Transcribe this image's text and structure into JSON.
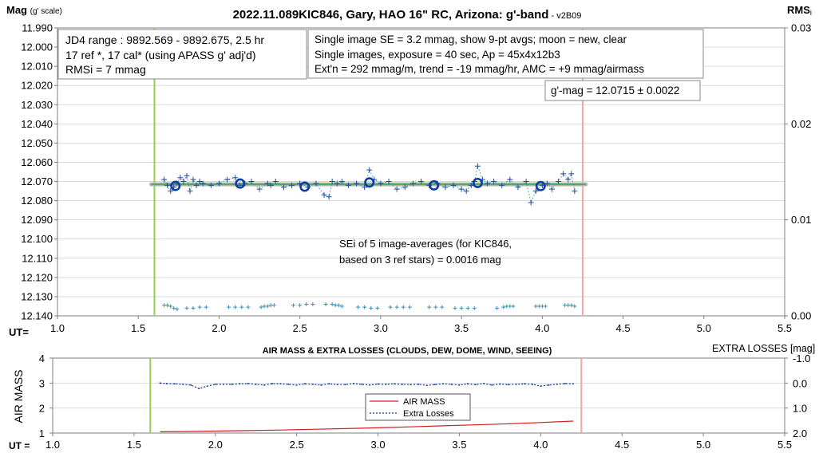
{
  "colors": {
    "start_line": "#92d050",
    "end_line": "#f4a6a6",
    "points": "#1f4e9a",
    "avg_ring": "#0b3ea8",
    "sigma": "#3a8fb0",
    "fit_line": "#4caf50",
    "airmass": "#d02020",
    "extra": "#1030a0",
    "grid": "#d9d9d9"
  },
  "chart_data": [
    {
      "type": "scatter",
      "title": "2022.11.089KIC846, Gary, HAO 16\" RC, Arizona: g'-band",
      "title_suffix": " - v2B09",
      "ylabel": "Mag",
      "ylabel_suffix": "(g' scale)",
      "y2label": "RMS",
      "y2label_suffix": "i",
      "xlabel": "UT=",
      "xlim": [
        1.0,
        5.5
      ],
      "ylim": [
        11.99,
        12.14
      ],
      "y_inverted": true,
      "y2lim": [
        0.0,
        0.03
      ],
      "x_ticks": [
        "1.0",
        "1.5",
        "2.0",
        "2.5",
        "3.0",
        "3.5",
        "4.0",
        "4.5",
        "5.0",
        "5.5"
      ],
      "y_ticks": [
        "11.990",
        "12.000",
        "12.010",
        "12.020",
        "12.030",
        "12.040",
        "12.050",
        "12.060",
        "12.070",
        "12.080",
        "12.090",
        "12.100",
        "12.110",
        "12.120",
        "12.130",
        "12.140"
      ],
      "y2_ticks": [
        "0.00",
        "0.01",
        "0.02",
        "0.03"
      ],
      "vline_start": 1.6,
      "vline_end": 4.25,
      "fit": {
        "x": [
          1.58,
          4.27
        ],
        "y": 12.0715
      },
      "info_left": [
        "JD4 range : 9892.569 - 9892.675,  2.5 hr",
        "17 ref *, 17 cal* (using APASS g' adj'd)",
        "RMSi = 7 mmag"
      ],
      "info_right": [
        "Single image SE = 3.2 mmag, show  9-pt avgs; moon = new, clear",
        "Single images, exposure = 40 sec, Ap = 45x4x12b3",
        "Ext'n = 292 mmag/m, trend = -19 mmag/hr, AMC = +9 mmag/airmass"
      ],
      "gmag_label": "g'-mag = 12.0715 ± 0.0022",
      "sei_label": [
        "SEi of 5 image-averages (for KIC846,",
        "based on 3 ref stars) = 0.0016 mag"
      ],
      "series": [
        {
          "name": "single images",
          "x": [
            1.66,
            1.68,
            1.7,
            1.72,
            1.74,
            1.76,
            1.78,
            1.8,
            1.82,
            1.84,
            1.86,
            1.88,
            1.9,
            1.95,
            2.0,
            2.05,
            2.1,
            2.13,
            2.16,
            2.2,
            2.25,
            2.3,
            2.32,
            2.35,
            2.4,
            2.45,
            2.5,
            2.55,
            2.6,
            2.65,
            2.68,
            2.7,
            2.73,
            2.76,
            2.8,
            2.85,
            2.9,
            2.93,
            2.96,
            3.0,
            3.05,
            3.1,
            3.15,
            3.2,
            3.25,
            3.3,
            3.35,
            3.4,
            3.45,
            3.5,
            3.53,
            3.56,
            3.58,
            3.6,
            3.63,
            3.66,
            3.7,
            3.75,
            3.8,
            3.85,
            3.9,
            3.93,
            3.96,
            4.0,
            4.03,
            4.06,
            4.1,
            4.13,
            4.16,
            4.18,
            4.2
          ],
          "y": [
            12.069,
            12.072,
            12.075,
            12.073,
            12.071,
            12.068,
            12.07,
            12.067,
            12.075,
            12.069,
            12.072,
            12.07,
            12.071,
            12.072,
            12.071,
            12.069,
            12.068,
            12.072,
            12.071,
            12.07,
            12.074,
            12.071,
            12.072,
            12.07,
            12.073,
            12.072,
            12.071,
            12.073,
            12.071,
            12.077,
            12.078,
            12.07,
            12.071,
            12.07,
            12.072,
            12.071,
            12.073,
            12.064,
            12.069,
            12.071,
            12.07,
            12.074,
            12.073,
            12.071,
            12.07,
            12.072,
            12.071,
            12.073,
            12.072,
            12.074,
            12.075,
            12.072,
            12.07,
            12.062,
            12.069,
            12.071,
            12.07,
            12.072,
            12.069,
            12.073,
            12.07,
            12.081,
            12.075,
            12.072,
            12.071,
            12.074,
            12.07,
            12.066,
            12.069,
            12.066,
            12.075
          ]
        },
        {
          "name": "9-pt averages",
          "x": [
            1.73,
            2.13,
            2.53,
            2.93,
            3.33,
            3.6,
            3.99
          ],
          "y": [
            12.0723,
            12.0711,
            12.0727,
            12.0705,
            12.072,
            12.0708,
            12.0724
          ]
        },
        {
          "name": "RMSi (right axis)",
          "x": [
            1.66,
            1.68,
            1.7,
            1.72,
            1.74,
            1.8,
            1.84,
            1.88,
            1.92,
            2.06,
            2.1,
            2.14,
            2.18,
            2.26,
            2.28,
            2.3,
            2.32,
            2.34,
            2.46,
            2.5,
            2.54,
            2.58,
            2.66,
            2.7,
            2.72,
            2.74,
            2.76,
            2.86,
            2.9,
            2.94,
            2.98,
            3.06,
            3.1,
            3.14,
            3.18,
            3.3,
            3.34,
            3.38,
            3.46,
            3.5,
            3.54,
            3.58,
            3.72,
            3.76,
            3.78,
            3.8,
            3.82,
            3.96,
            3.98,
            4.0,
            4.02,
            4.14,
            4.16,
            4.18,
            4.2
          ],
          "y": [
            0.0011,
            0.0011,
            0.001,
            0.0008,
            0.0007,
            0.0008,
            0.0008,
            0.0009,
            0.0009,
            0.0009,
            0.0009,
            0.0009,
            0.0009,
            0.0009,
            0.001,
            0.001,
            0.0011,
            0.0011,
            0.0011,
            0.0011,
            0.0012,
            0.0012,
            0.0012,
            0.0012,
            0.0011,
            0.0011,
            0.001,
            0.0009,
            0.0009,
            0.0008,
            0.0008,
            0.0009,
            0.0009,
            0.0009,
            0.0009,
            0.0009,
            0.0009,
            0.0009,
            0.0008,
            0.0008,
            0.0008,
            0.0008,
            0.0008,
            0.0009,
            0.001,
            0.001,
            0.001,
            0.001,
            0.001,
            0.001,
            0.001,
            0.0011,
            0.0011,
            0.0011,
            0.001
          ]
        }
      ]
    },
    {
      "type": "line",
      "title": "AIR MASS & EXTRA LOSSES (CLOUDS, DEW, DOME, WIND, SEEING)",
      "ylabel": "AIR MASS",
      "y2label": "EXTRA LOSSES [mag]",
      "xlabel": "UT =",
      "xlim": [
        1.0,
        5.5
      ],
      "ylim": [
        1,
        4
      ],
      "y2lim": [
        -1.0,
        2.0
      ],
      "y2_inverted": true,
      "x_ticks": [
        "1.0",
        "1.5",
        "2.0",
        "2.5",
        "3.0",
        "3.5",
        "4.0",
        "4.5",
        "5.0",
        "5.5"
      ],
      "y_ticks": [
        "1",
        "2",
        "3",
        "4"
      ],
      "y2_ticks": [
        "-1.0",
        "0.0",
        "1.0",
        "2.0"
      ],
      "vline_start": 1.6,
      "vline_end": 4.25,
      "legend": [
        "AIR MASS",
        "Extra Losses"
      ],
      "legend_position": "center",
      "series": [
        {
          "name": "AIR MASS",
          "x": [
            1.66,
            1.8,
            2.0,
            2.2,
            2.4,
            2.6,
            2.8,
            3.0,
            3.2,
            3.4,
            3.6,
            3.8,
            4.0,
            4.1,
            4.2
          ],
          "y": [
            1.05,
            1.06,
            1.08,
            1.1,
            1.12,
            1.15,
            1.18,
            1.21,
            1.25,
            1.29,
            1.33,
            1.37,
            1.42,
            1.45,
            1.48
          ]
        },
        {
          "name": "Extra Losses",
          "x": [
            1.66,
            1.7,
            1.75,
            1.8,
            1.85,
            1.9,
            1.95,
            2.0,
            2.05,
            2.1,
            2.15,
            2.2,
            2.25,
            2.3,
            2.35,
            2.4,
            2.45,
            2.5,
            2.55,
            2.6,
            2.65,
            2.7,
            2.75,
            2.8,
            2.85,
            2.9,
            2.95,
            3.0,
            3.05,
            3.1,
            3.15,
            3.2,
            3.25,
            3.3,
            3.35,
            3.4,
            3.45,
            3.5,
            3.55,
            3.6,
            3.65,
            3.7,
            3.75,
            3.8,
            3.85,
            3.9,
            3.95,
            4.0,
            4.05,
            4.1,
            4.15,
            4.2
          ],
          "y": [
            0.0,
            0.02,
            0.03,
            0.05,
            0.08,
            0.22,
            0.12,
            0.05,
            0.05,
            0.05,
            0.03,
            0.02,
            0.05,
            0.08,
            0.02,
            0.03,
            0.05,
            0.08,
            0.03,
            0.05,
            0.08,
            0.03,
            0.06,
            0.06,
            0.02,
            0.05,
            0.08,
            0.04,
            0.05,
            0.03,
            0.05,
            0.06,
            0.05,
            0.09,
            0.06,
            0.03,
            0.05,
            0.08,
            0.03,
            0.06,
            0.02,
            0.08,
            0.04,
            0.06,
            0.05,
            0.03,
            0.05,
            0.12,
            0.08,
            0.05,
            0.02,
            0.03
          ]
        }
      ]
    }
  ]
}
